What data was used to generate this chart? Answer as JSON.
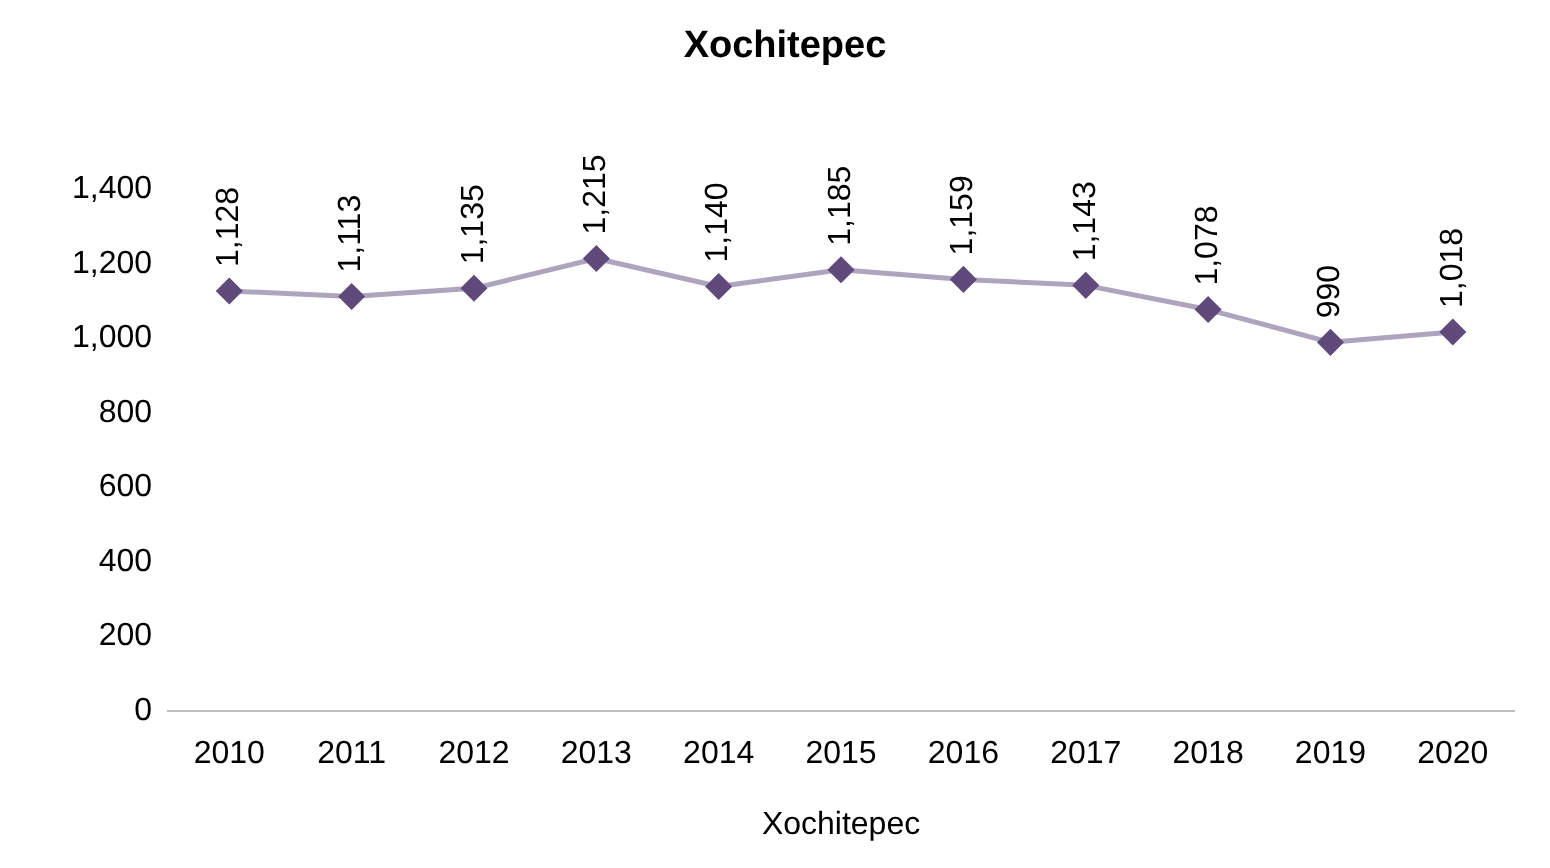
{
  "chart_data": {
    "type": "line",
    "title": "Xochitepec",
    "xlabel": "Xochitepec",
    "categories": [
      "2010",
      "2011",
      "2012",
      "2013",
      "2014",
      "2015",
      "2016",
      "2017",
      "2018",
      "2019",
      "2020"
    ],
    "series": [
      {
        "color": "#604a7b",
        "values": [
          1128,
          1113,
          1135,
          1215,
          1140,
          1185,
          1159,
          1143,
          1078,
          990,
          1018
        ],
        "value_labels": [
          "1,128",
          "1,113",
          "1,135",
          "1,215",
          "1,140",
          "1,185",
          "1,159",
          "1,143",
          "1,078",
          "990",
          "1,018"
        ]
      }
    ],
    "ylim": [
      0,
      1400
    ],
    "yticks": [
      {
        "value": 0,
        "label": "0"
      },
      {
        "value": 200,
        "label": "200"
      },
      {
        "value": 400,
        "label": "400"
      },
      {
        "value": 600,
        "label": "600"
      },
      {
        "value": 800,
        "label": "800"
      },
      {
        "value": 1000,
        "label": "1,000"
      },
      {
        "value": 1200,
        "label": "1,200"
      },
      {
        "value": 1400,
        "label": "1,400"
      }
    ],
    "grid": false,
    "legend": false,
    "marker": "diamond",
    "line_style": "solid"
  }
}
